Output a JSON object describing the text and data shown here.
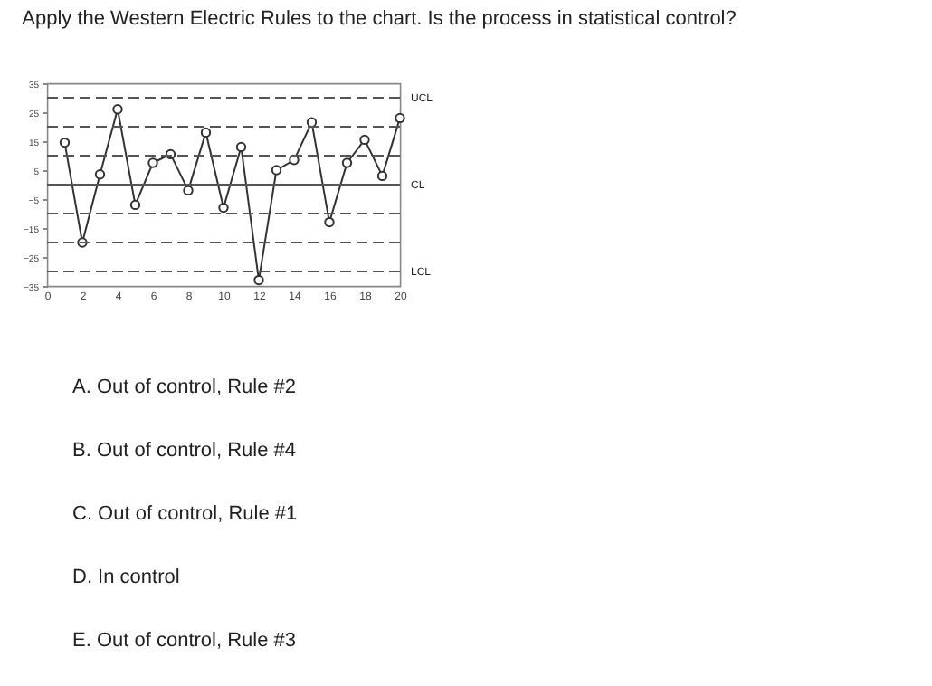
{
  "chart_data": {
    "type": "line",
    "title": "Apply the Western Electric Rules to the chart. Is the process in statistical control?",
    "x": [
      1,
      2,
      3,
      4,
      5,
      6,
      7,
      8,
      9,
      10,
      11,
      12,
      13,
      14,
      15,
      16,
      17,
      18,
      19,
      20
    ],
    "series": [
      {
        "color": "#333333",
        "values": [
          14.5,
          -20,
          3.5,
          26,
          -7,
          7.5,
          10.5,
          -2,
          18,
          -8,
          13,
          -33,
          5,
          8.5,
          21.5,
          -13,
          7.5,
          15.5,
          3,
          23
        ]
      }
    ],
    "xlim": [
      0,
      20
    ],
    "xticks": [
      0,
      2,
      4,
      6,
      8,
      10,
      12,
      14,
      16,
      18,
      20
    ],
    "ylim": [
      -35,
      35
    ],
    "yticks": [
      -35,
      -25,
      -15,
      -5,
      5,
      15,
      25,
      35
    ],
    "grid": false,
    "marker": "circle",
    "line_style": "solid",
    "ref_lines": [
      {
        "axis": "y",
        "value": 30,
        "label": "UCL",
        "line_style": "dashed",
        "color": "#555555"
      },
      {
        "axis": "y",
        "value": 20,
        "label": null,
        "line_style": "dashed",
        "color": "#555555"
      },
      {
        "axis": "y",
        "value": 10,
        "label": null,
        "line_style": "dashed",
        "color": "#555555"
      },
      {
        "axis": "y",
        "value": 0,
        "label": "CL",
        "line_style": "solid",
        "color": "#555555"
      },
      {
        "axis": "y",
        "value": -10,
        "label": null,
        "line_style": "dashed",
        "color": "#555555"
      },
      {
        "axis": "y",
        "value": -20,
        "label": null,
        "line_style": "dashed",
        "color": "#555555"
      },
      {
        "axis": "y",
        "value": -30,
        "label": "LCL",
        "line_style": "dashed",
        "color": "#555555"
      }
    ],
    "annotations": [
      "A. Out of control, Rule #2",
      "B. Out of control, Rule #4",
      "C. Out of control, Rule #1",
      "D. In control",
      "E. Out of control, Rule #3"
    ]
  }
}
